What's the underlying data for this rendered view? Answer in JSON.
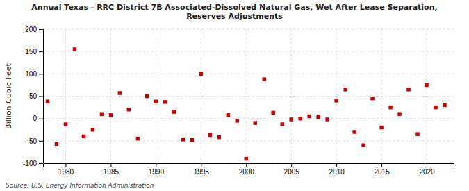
{
  "chart_data": {
    "type": "scatter",
    "title": "Annual Texas - RRC District 7B Associated-Dissolved Natural Gas, Wet After Lease Separation,\nReserves Adjustments",
    "ylabel": "Billion Cubic Feet",
    "source": "Source: U.S. Energy Information Administration",
    "x": [
      1978,
      1979,
      1980,
      1981,
      1982,
      1983,
      1984,
      1985,
      1986,
      1987,
      1988,
      1989,
      1990,
      1991,
      1992,
      1993,
      1994,
      1995,
      1996,
      1997,
      1998,
      1999,
      2000,
      2001,
      2002,
      2003,
      2004,
      2005,
      2006,
      2007,
      2008,
      2009,
      2010,
      2011,
      2012,
      2013,
      2014,
      2015,
      2016,
      2017,
      2018,
      2019,
      2020,
      2021,
      2022
    ],
    "values": [
      38,
      -57,
      -13,
      155,
      -40,
      -25,
      10,
      8,
      57,
      20,
      -45,
      50,
      38,
      37,
      15,
      -47,
      -48,
      100,
      -37,
      -42,
      8,
      -5,
      -90,
      -10,
      88,
      13,
      -13,
      -2,
      0,
      5,
      3,
      -2,
      40,
      65,
      -30,
      -60,
      45,
      -20,
      25,
      10,
      65,
      -35,
      75,
      25,
      30
    ],
    "color": "#cc0000",
    "marker": "square",
    "xlim": [
      1977.5,
      2023
    ],
    "ylim": [
      -100,
      200
    ],
    "xticks": [
      1980,
      1985,
      1990,
      1995,
      2000,
      2005,
      2010,
      2015,
      2020
    ],
    "yticks": [
      -100,
      -50,
      0,
      50,
      100,
      150,
      200
    ],
    "grid": true
  }
}
